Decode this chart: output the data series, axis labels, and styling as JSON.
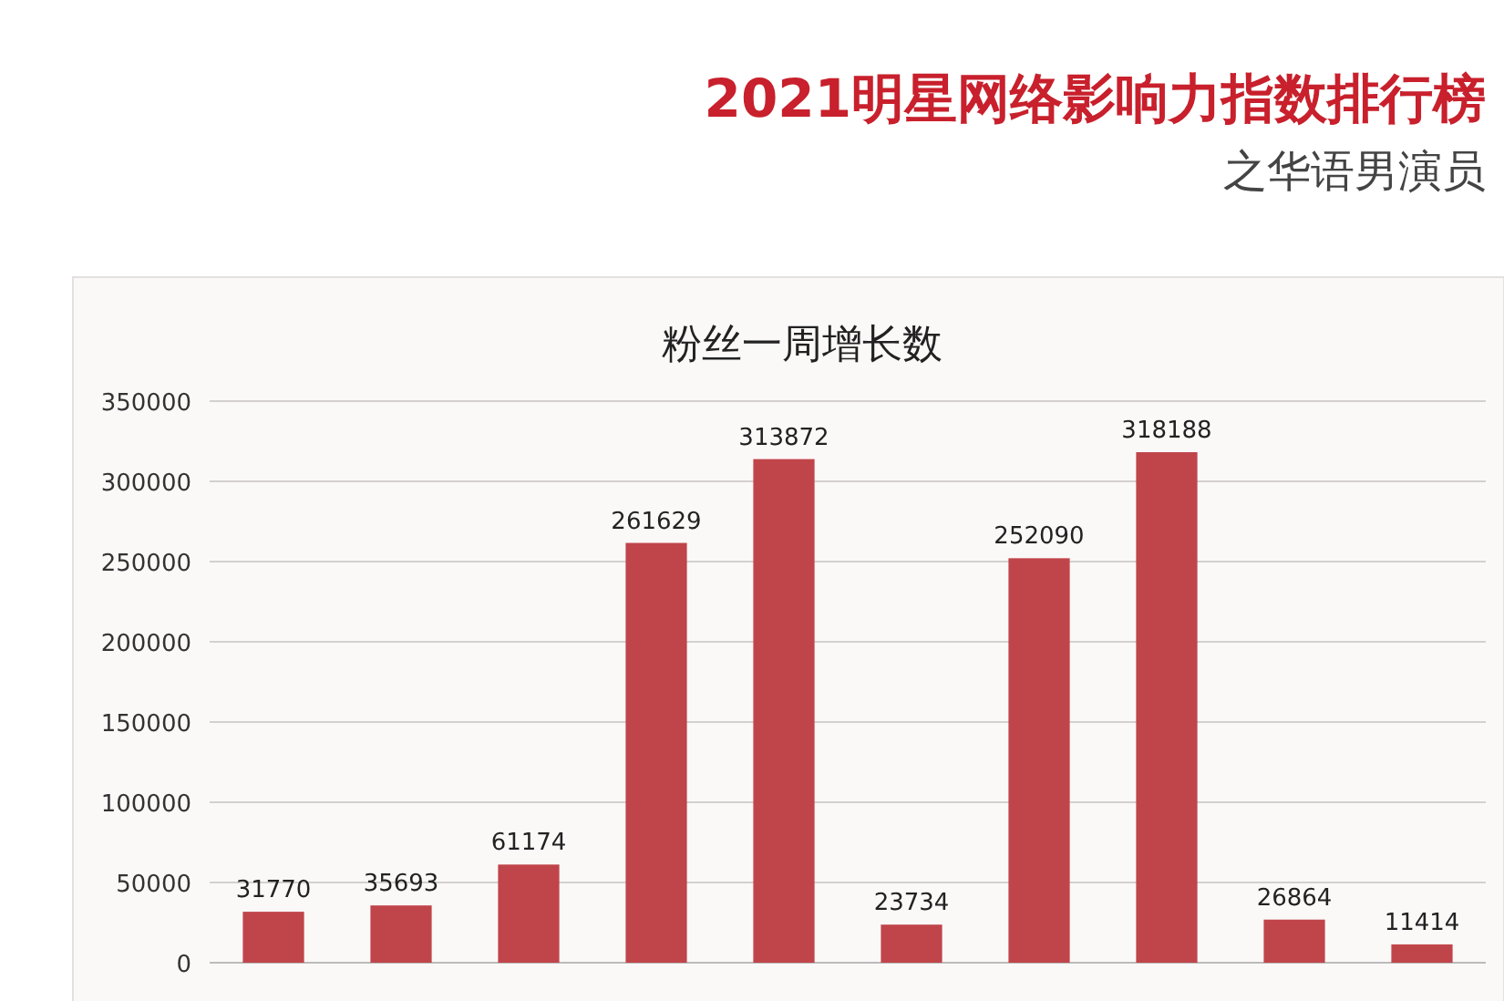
{
  "chart_data": {
    "type": "bar",
    "title": "粉丝一周增长数",
    "annotations": [
      "2021明星网络影响力指数排行榜",
      "之华语男演员"
    ],
    "categories": [
      null,
      null,
      null,
      null,
      null,
      null,
      null,
      null,
      null,
      null
    ],
    "values": [
      31770,
      35693,
      61174,
      261629,
      313872,
      23734,
      252090,
      318188,
      26864,
      11414
    ],
    "color": "#c0454a",
    "ylim": [
      0,
      350000
    ],
    "yticks": [
      0,
      50000,
      100000,
      150000,
      200000,
      250000,
      300000,
      350000
    ],
    "grid": "y",
    "data_labels": true
  }
}
